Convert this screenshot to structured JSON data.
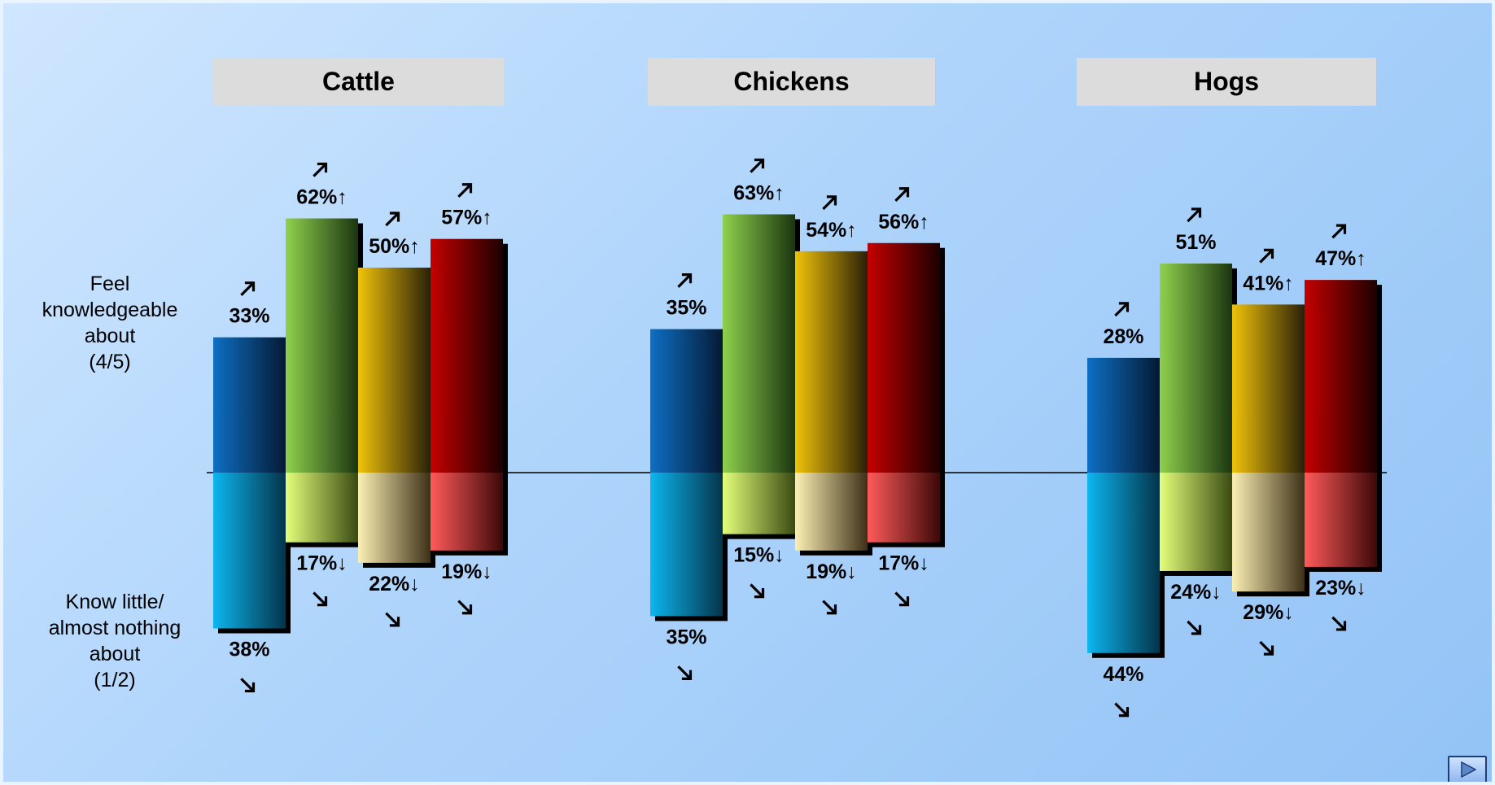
{
  "chart_data": {
    "type": "bar",
    "groups": [
      {
        "name": "Cattle",
        "top": [
          {
            "value": 33,
            "label": "33%",
            "trend": "up",
            "sig": ""
          },
          {
            "value": 62,
            "label": "62%",
            "trend": "up",
            "sig": "↑"
          },
          {
            "value": 50,
            "label": "50%",
            "trend": "up",
            "sig": "↑"
          },
          {
            "value": 57,
            "label": "57%",
            "trend": "up",
            "sig": "↑"
          }
        ],
        "bottom": [
          {
            "value": 38,
            "label": "38%",
            "trend": "down",
            "sig": ""
          },
          {
            "value": 17,
            "label": "17%",
            "trend": "down",
            "sig": "↓"
          },
          {
            "value": 22,
            "label": "22%",
            "trend": "down",
            "sig": "↓"
          },
          {
            "value": 19,
            "label": "19%",
            "trend": "down",
            "sig": "↓"
          }
        ]
      },
      {
        "name": "Chickens",
        "top": [
          {
            "value": 35,
            "label": "35%",
            "trend": "up",
            "sig": ""
          },
          {
            "value": 63,
            "label": "63%",
            "trend": "up",
            "sig": "↑"
          },
          {
            "value": 54,
            "label": "54%",
            "trend": "up",
            "sig": "↑"
          },
          {
            "value": 56,
            "label": "56%",
            "trend": "up",
            "sig": "↑"
          }
        ],
        "bottom": [
          {
            "value": 35,
            "label": "35%",
            "trend": "down",
            "sig": ""
          },
          {
            "value": 15,
            "label": "15%",
            "trend": "down",
            "sig": "↓"
          },
          {
            "value": 19,
            "label": "19%",
            "trend": "down",
            "sig": "↓"
          },
          {
            "value": 17,
            "label": "17%",
            "trend": "down",
            "sig": "↓"
          }
        ]
      },
      {
        "name": "Hogs",
        "top": [
          {
            "value": 28,
            "label": "28%",
            "trend": "up",
            "sig": ""
          },
          {
            "value": 51,
            "label": "51%",
            "trend": "up",
            "sig": ""
          },
          {
            "value": 41,
            "label": "41%",
            "trend": "up",
            "sig": "↑"
          },
          {
            "value": 47,
            "label": "47%",
            "trend": "up",
            "sig": "↑"
          }
        ],
        "bottom": [
          {
            "value": 44,
            "label": "44%",
            "trend": "down",
            "sig": ""
          },
          {
            "value": 24,
            "label": "24%",
            "trend": "down",
            "sig": "↓"
          },
          {
            "value": 29,
            "label": "29%",
            "trend": "down",
            "sig": "↓"
          },
          {
            "value": 23,
            "label": "23%",
            "trend": "down",
            "sig": "↓"
          }
        ]
      }
    ],
    "row_labels": {
      "top": [
        "Feel",
        "knowledgeable",
        "about",
        "(4/5)"
      ],
      "bottom": [
        "Know little/",
        "almost nothing",
        "about",
        "(1/2)"
      ]
    },
    "series_colors": [
      {
        "top": [
          "#0e6fc4",
          "#041a33"
        ],
        "bottom": [
          "#0cb6ef",
          "#04344a"
        ]
      },
      {
        "top": [
          "#8fd14c",
          "#1b3510"
        ],
        "bottom": [
          "#e3ff7a",
          "#3a4a12"
        ]
      },
      {
        "top": [
          "#f0c30a",
          "#2a2008"
        ],
        "bottom": [
          "#fbf0b4",
          "#3e3018"
        ]
      },
      {
        "top": [
          "#c40000",
          "#1c0000"
        ],
        "bottom": [
          "#ff5a5a",
          "#3c0808"
        ]
      }
    ]
  },
  "ui": {
    "next_button": "next-icon"
  }
}
